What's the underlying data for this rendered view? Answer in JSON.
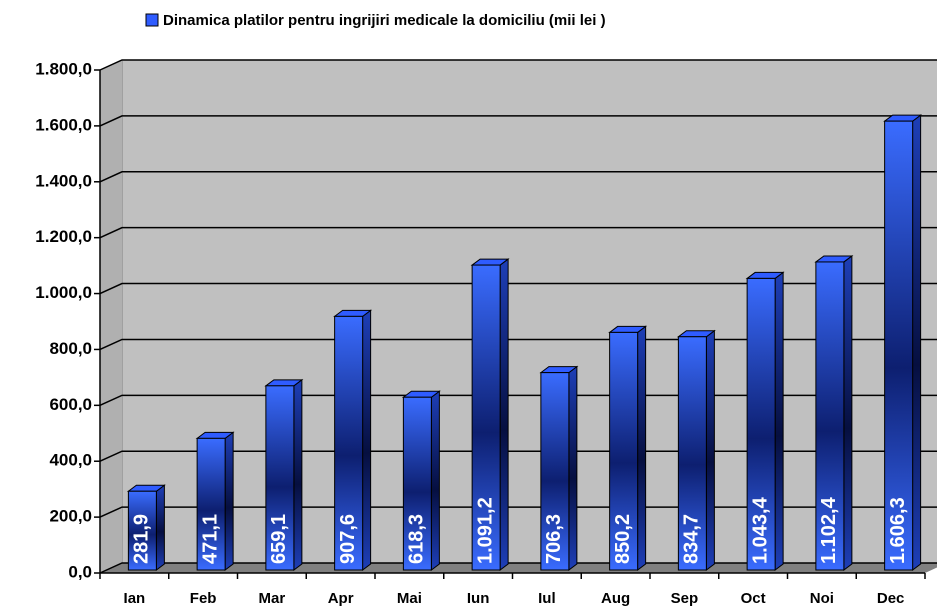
{
  "chart_data": {
    "type": "bar",
    "categories": [
      "Ian",
      "Feb",
      "Mar",
      "Apr",
      "Mai",
      "Iun",
      "Iul",
      "Aug",
      "Sep",
      "Oct",
      "Noi",
      "Dec"
    ],
    "series": [
      {
        "name": "Dinamica platilor pentru ingrijiri medicale la domiciliu (mii lei )",
        "color": "#2f5cff",
        "values": [
          281.9,
          471.1,
          659.1,
          907.6,
          618.3,
          1091.2,
          706.3,
          850.2,
          834.7,
          1043.4,
          1102.4,
          1606.3
        ],
        "value_labels": [
          "281,9",
          "471,1",
          "659,1",
          "907,6",
          "618,3",
          "1.091,2",
          "706,3",
          "850,2",
          "834,7",
          "1.043,4",
          "1.102,4",
          "1.606,3"
        ]
      }
    ],
    "ylim": [
      0,
      1800
    ],
    "yticks": [
      {
        "value": 0,
        "label": "0,0"
      },
      {
        "value": 200,
        "label": "200,0"
      },
      {
        "value": 400,
        "label": "400,0"
      },
      {
        "value": 600,
        "label": "600,0"
      },
      {
        "value": 800,
        "label": "800,0"
      },
      {
        "value": 1000,
        "label": "1.000,0"
      },
      {
        "value": 1200,
        "label": "1.200,0"
      },
      {
        "value": 1400,
        "label": "1.400,0"
      },
      {
        "value": 1600,
        "label": "1.600,0"
      },
      {
        "value": 1800,
        "label": "1.800,0"
      }
    ],
    "grid": true,
    "legend": "top"
  }
}
